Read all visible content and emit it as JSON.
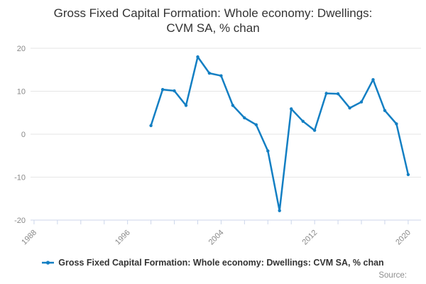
{
  "title": {
    "line1": "Gross Fixed Capital Formation: Whole economy: Dwellings:",
    "line2": "CVM SA, % chan"
  },
  "legend": {
    "label": "Gross Fixed Capital Formation: Whole economy: Dwellings: CVM SA, % chan"
  },
  "source": {
    "label": "Source:"
  },
  "colors": {
    "line": "#137fc3",
    "grid": "#e6e6e6",
    "axis": "#ccd6eb",
    "axis_text": "#888888",
    "title_text": "#333333"
  },
  "chart_data": {
    "type": "line",
    "title": "Gross Fixed Capital Formation: Whole economy: Dwellings: CVM SA, % chan",
    "xlabel": "",
    "ylabel": "",
    "grid": "horizontal",
    "legend_position": "bottom",
    "xlim": [
      1987.7,
      2021.1
    ],
    "ylim": [
      -20,
      20
    ],
    "y_ticks": [
      20,
      10,
      0,
      -10,
      -20
    ],
    "x_tick_first": 1988,
    "x_tick_last": 2020,
    "x_tick_step": 2,
    "x_tick_labels": [
      "1988",
      "1996",
      "2004",
      "2012",
      "2020"
    ],
    "series": [
      {
        "name": "Gross Fixed Capital Formation: Whole economy: Dwellings: CVM SA, % chan",
        "x": [
          1998,
          1999,
          2000,
          2001,
          2002,
          2003,
          2004,
          2005,
          2006,
          2007,
          2008,
          2009,
          2010,
          2011,
          2012,
          2013,
          2014,
          2015,
          2016,
          2017,
          2018,
          2019,
          2020
        ],
        "values": [
          2.0,
          10.4,
          10.1,
          6.7,
          18.0,
          14.2,
          13.6,
          6.7,
          3.8,
          2.2,
          -3.9,
          -17.8,
          5.9,
          3.0,
          0.9,
          9.5,
          9.4,
          6.1,
          7.5,
          12.7,
          5.5,
          2.4,
          -9.4
        ]
      }
    ]
  }
}
